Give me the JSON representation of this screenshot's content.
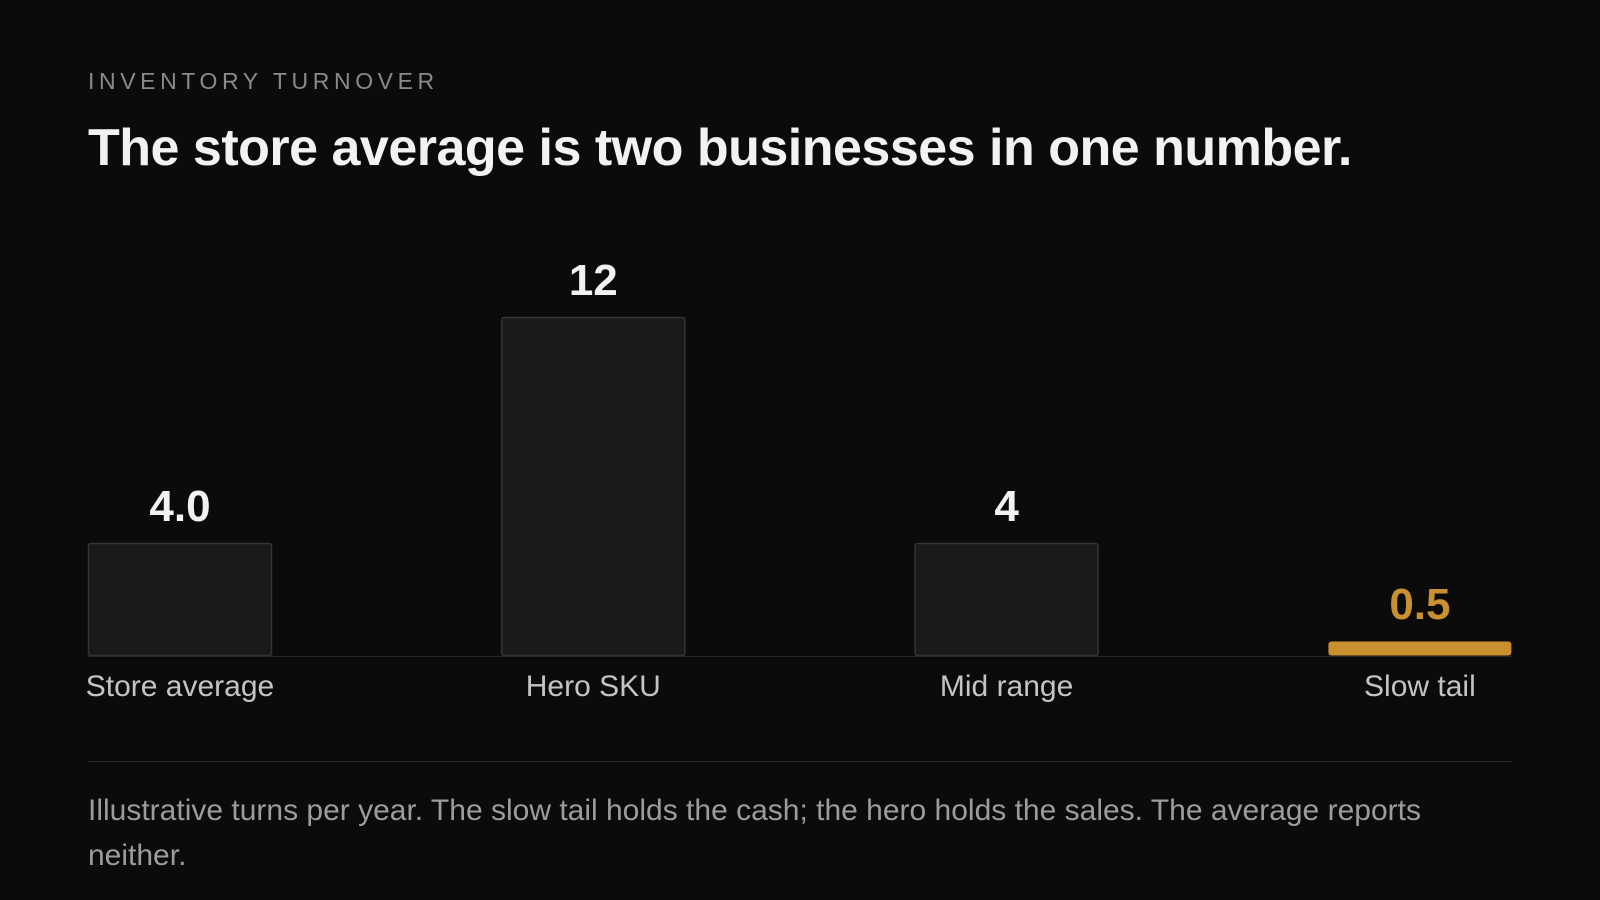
{
  "header": {
    "eyebrow": "INVENTORY TURNOVER",
    "title": "The store average is two businesses in one number."
  },
  "colors": {
    "background": "#0b0b0b",
    "bar_fill": "#1a1a1a",
    "bar_stroke": "#333333",
    "highlight": "#c8902e",
    "value_text": "#f2f2f2",
    "category_text": "#c4c4c4"
  },
  "chart_data": {
    "type": "bar",
    "categories": [
      "Store average",
      "Hero SKU",
      "Mid range",
      "Slow tail"
    ],
    "values": [
      4.0,
      12,
      4,
      0.5
    ],
    "value_labels": [
      "4.0",
      "12",
      "4",
      "0.5"
    ],
    "highlight": [
      false,
      false,
      false,
      true
    ],
    "ylim": [
      0,
      12
    ],
    "grid": false,
    "legend": "none"
  },
  "footer": {
    "caption": "Illustrative turns per year. The slow tail holds the cash; the hero holds the sales. The average reports neither."
  }
}
